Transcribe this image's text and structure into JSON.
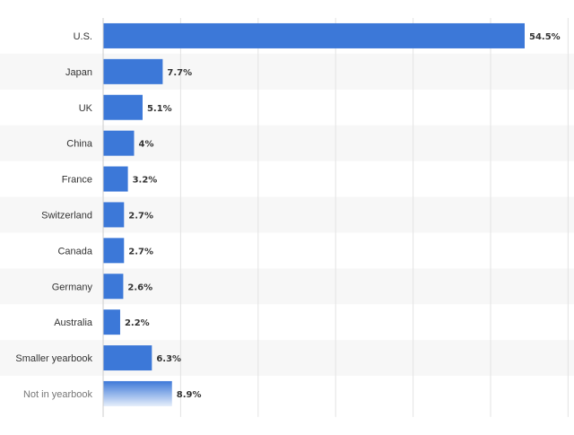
{
  "chart_data": {
    "type": "bar",
    "orientation": "horizontal",
    "title": "",
    "xlabel": "",
    "ylabel": "",
    "unit": "%",
    "categories": [
      "U.S.",
      "Japan",
      "UK",
      "China",
      "France",
      "Switzerland",
      "Canada",
      "Germany",
      "Australia",
      "Smaller yearbook",
      "Not in yearbook"
    ],
    "values": [
      54.5,
      7.7,
      5.1,
      4,
      3.2,
      2.7,
      2.7,
      2.6,
      2.2,
      6.3,
      8.9
    ],
    "value_labels": [
      "54.5%",
      "7.7%",
      "5.1%",
      "4%",
      "3.2%",
      "2.7%",
      "2.7%",
      "2.6%",
      "2.2%",
      "6.3%",
      "8.9%"
    ],
    "xlim": [
      0,
      60
    ],
    "grid": true,
    "bar_color": "#3c78d8",
    "last_bar_style": "gradient-fade",
    "last_category_muted": true
  }
}
